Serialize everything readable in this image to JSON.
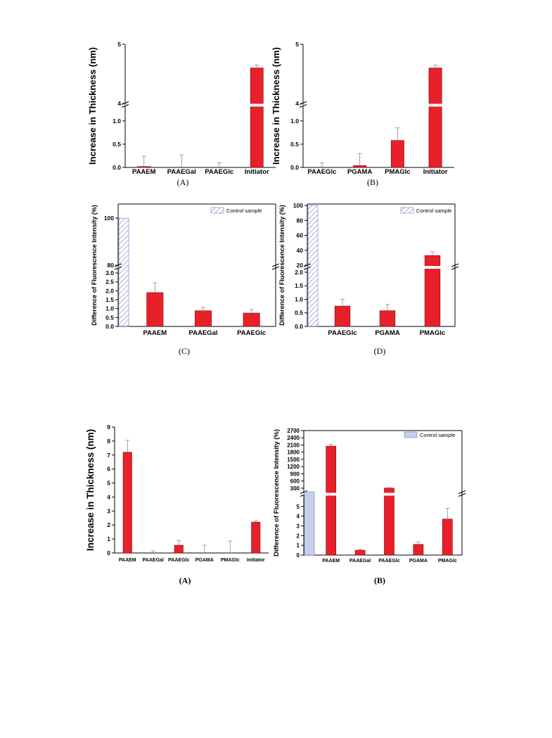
{
  "colors": {
    "bar": "#e8202a",
    "control_hatch": "#6f7fc2",
    "control_fill_solid": "#c7cfe8",
    "axis": "#000000",
    "error": "#888888"
  },
  "chart_data": [
    {
      "type": "bar",
      "panel": "(A)",
      "ylabel": "Increase in Thickness (nm)",
      "categories": [
        "PAAEM",
        "PAAEGal",
        "PAAEGlc",
        "Initiator"
      ],
      "values": [
        0.02,
        0.0,
        0.0,
        4.6
      ],
      "errors": [
        0.22,
        0.27,
        0.1,
        0.05
      ],
      "axis_break": {
        "lower": [
          0,
          1.3
        ],
        "upper": [
          4,
          5
        ]
      },
      "yticks_lower": [
        "0.0",
        "0.5",
        "1.0"
      ],
      "yticks_upper": [
        "4",
        "5"
      ]
    },
    {
      "type": "bar",
      "panel": "(B)",
      "ylabel": "Increase in Thickness (nm)",
      "categories": [
        "PAAEGlc",
        "PGAMA",
        "PMAGlc",
        "Initiator"
      ],
      "values": [
        0.0,
        0.04,
        0.58,
        4.6
      ],
      "errors": [
        0.1,
        0.26,
        0.27,
        0.05
      ],
      "axis_break": {
        "lower": [
          0,
          1.3
        ],
        "upper": [
          4,
          5
        ]
      },
      "yticks_lower": [
        "0.0",
        "0.5",
        "1.0"
      ],
      "yticks_upper": [
        "4",
        "5"
      ]
    },
    {
      "type": "bar",
      "panel": "(C)",
      "ylabel": "Difference of Fluorescence Intensity (%)",
      "legend": "Control sample",
      "control_value": 100,
      "categories": [
        "PAAEM",
        "PAAEGal",
        "PAAEGlc"
      ],
      "values": [
        1.9,
        0.88,
        0.75
      ],
      "errors": [
        0.55,
        0.2,
        0.2
      ],
      "axis_break": {
        "lower": [
          0,
          3.2
        ],
        "upper": [
          80,
          106
        ]
      },
      "yticks_lower": [
        "0.0",
        "0.5",
        "1.0",
        "1.5",
        "2.0",
        "2.5",
        "3.0"
      ],
      "yticks_upper": [
        "80",
        "100"
      ]
    },
    {
      "type": "bar",
      "panel": "(D)",
      "ylabel": "Difference of Fluorescence Intensity (%)",
      "legend": "Control sample",
      "control_value": 100,
      "categories": [
        "PAAEGlc",
        "PGAMA",
        "PMAGlc"
      ],
      "values": [
        0.75,
        0.58,
        33
      ],
      "errors": [
        0.25,
        0.23,
        5
      ],
      "axis_break": {
        "lower": [
          0,
          2.1
        ],
        "upper": [
          20,
          102
        ]
      },
      "yticks_lower": [
        "0.0",
        "0.5",
        "1.0",
        "1.5",
        "2.0"
      ],
      "yticks_upper": [
        "20",
        "40",
        "60",
        "80",
        "100"
      ]
    },
    {
      "type": "bar",
      "panel": "(A)",
      "ylabel": "Increase in Thickness (nm)",
      "categories": [
        "PAAEM",
        "PAAEGal",
        "PAAEGlc",
        "PGAMA",
        "PMAGlc",
        "Initiator"
      ],
      "values": [
        7.2,
        0.0,
        0.55,
        0.0,
        0.0,
        2.2
      ],
      "errors": [
        0.85,
        0.15,
        0.35,
        0.55,
        0.85,
        0.08
      ],
      "ylim": [
        0,
        9
      ],
      "yticks": [
        "0",
        "1",
        "2",
        "3",
        "4",
        "5",
        "6",
        "7",
        "8",
        "9"
      ]
    },
    {
      "type": "bar",
      "panel": "(B)",
      "ylabel": "Difference of Fluorescence Intensity (%)",
      "legend": "Control sample",
      "control_value": 100,
      "categories": [
        "PAAEM",
        "PAAEGal",
        "PAAEGlc",
        "PGAMA",
        "PMAGlc"
      ],
      "values": [
        2050,
        0.5,
        300,
        1.1,
        3.7
      ],
      "errors": [
        80,
        0.1,
        20,
        0.25,
        1.1
      ],
      "axis_break": {
        "lower": [
          0,
          6
        ],
        "upper": [
          150,
          2700
        ]
      },
      "yticks_lower": [
        "0",
        "1",
        "2",
        "3",
        "4",
        "5"
      ],
      "yticks_upper": [
        "300",
        "600",
        "900",
        "1200",
        "1500",
        "1800",
        "2100",
        "2400",
        "2700"
      ]
    }
  ]
}
